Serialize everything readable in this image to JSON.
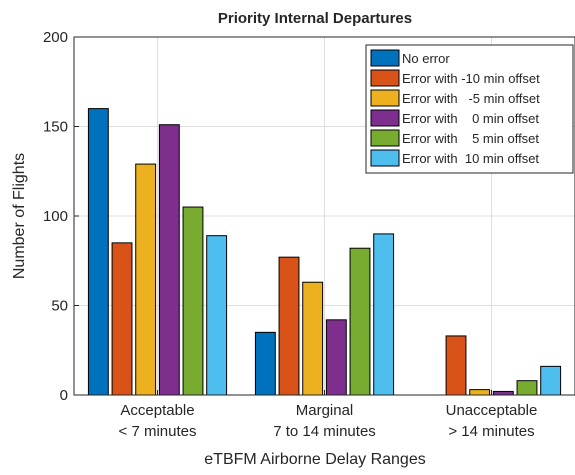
{
  "chart_data": {
    "type": "bar",
    "title": "Priority Internal Departures",
    "xlabel": "eTBFM Airborne Delay Ranges",
    "ylabel": "Number of Flights",
    "ylim": [
      0,
      200
    ],
    "yticks": [
      0,
      50,
      100,
      150,
      200
    ],
    "grid": true,
    "legend_position": "top-right",
    "categories": [
      {
        "line1": "Acceptable",
        "line2": "< 7 minutes"
      },
      {
        "line1": "Marginal",
        "line2": "7 to 14 minutes"
      },
      {
        "line1": "Unacceptable",
        "line2": "> 14 minutes"
      }
    ],
    "series": [
      {
        "name": "No error",
        "color": "#0072BD",
        "values": [
          160,
          35,
          0
        ]
      },
      {
        "name": "Error with -10 min offset",
        "color": "#D95319",
        "values": [
          85,
          77,
          33
        ]
      },
      {
        "name": "Error with   -5 min offset",
        "color": "#EDB120",
        "values": [
          129,
          63,
          3
        ]
      },
      {
        "name": "Error with    0 min offset",
        "color": "#7E2F8E",
        "values": [
          151,
          42,
          2
        ]
      },
      {
        "name": "Error with    5 min offset",
        "color": "#77AC30",
        "values": [
          105,
          82,
          8
        ]
      },
      {
        "name": "Error with  10 min offset",
        "color": "#4DBEEE",
        "values": [
          89,
          90,
          16
        ]
      }
    ]
  }
}
